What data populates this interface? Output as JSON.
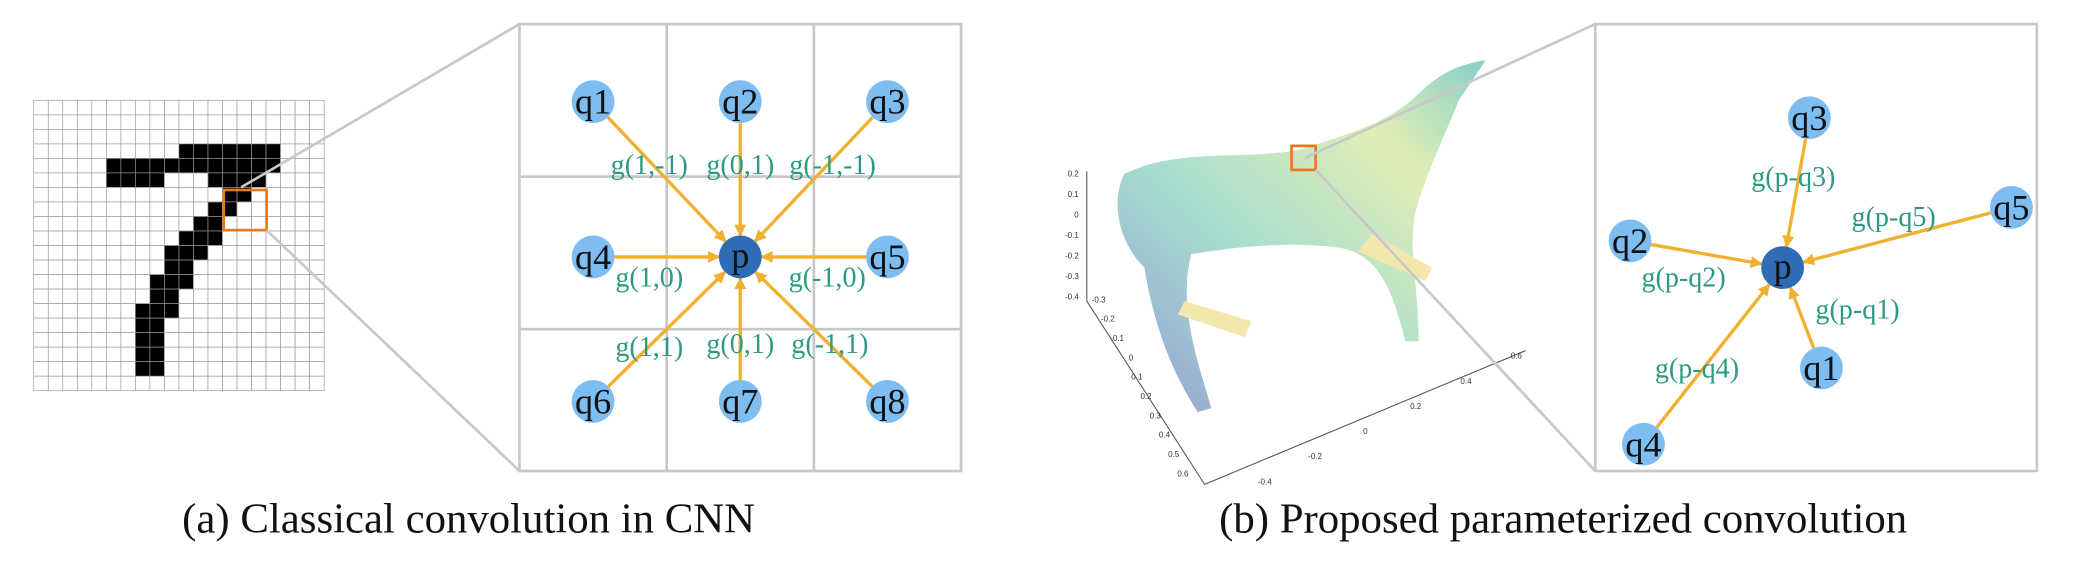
{
  "panel_a": {
    "caption": "(a) Classical convolution in CNN",
    "center": "p",
    "neighbors": [
      "q1",
      "q2",
      "q3",
      "q4",
      "q5",
      "q6",
      "q7",
      "q8"
    ],
    "edge_labels": [
      "g(1,-1)",
      "g(0,1)",
      "g(-1,-1)",
      "g(1,0)",
      "g(-1,0)",
      "g(1,1)",
      "g(0,1)",
      "g(-1,1)"
    ]
  },
  "panel_b": {
    "caption": "(b) Proposed parameterized convolution",
    "center": "p",
    "neighbors": [
      "q1",
      "q2",
      "q3",
      "q4",
      "q5"
    ],
    "edge_labels": [
      "g(p-q1)",
      "g(p-q2)",
      "g(p-q3)",
      "g(p-q4)",
      "g(p-q5)"
    ]
  },
  "plot": {
    "z_ticks": [
      "0.2",
      "0.1",
      "0",
      "-0.1",
      "-0.2",
      "-0.3",
      "-0.4"
    ],
    "y_ticks": [
      "-0.3",
      "-0.2",
      "-0.1",
      "0",
      "0.1",
      "0.2",
      "0.3",
      "0.4",
      "0.5",
      "0.6"
    ],
    "x_ticks": [
      "-0.4",
      "-0.2",
      "0",
      "0.2",
      "0.4",
      "0.6"
    ]
  }
}
